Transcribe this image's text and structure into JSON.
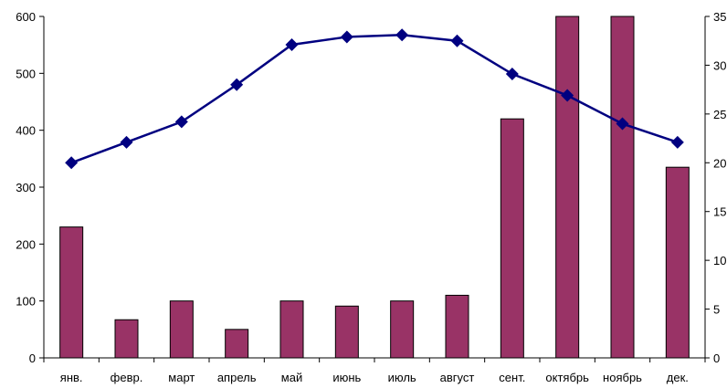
{
  "chart_data": {
    "type": "bar+line",
    "title": "",
    "xlabel": "",
    "ylabel": "",
    "y2label": "",
    "categories": [
      "янв.",
      "февр.",
      "март",
      "апрель",
      "май",
      "июнь",
      "июль",
      "август",
      "сент.",
      "октябрь",
      "ноябрь",
      "дек."
    ],
    "series": [
      {
        "kind": "bar",
        "axis": "left",
        "color": "#993366",
        "values": [
          230,
          67,
          100,
          50,
          100,
          91,
          100,
          110,
          420,
          600,
          600,
          335
        ]
      },
      {
        "kind": "line",
        "axis": "right",
        "color": "#000080",
        "marker": "diamond",
        "values": [
          20.0,
          22.1,
          24.2,
          28.0,
          32.1,
          32.9,
          33.1,
          32.5,
          29.1,
          26.9,
          24.0,
          22.1
        ]
      }
    ],
    "ylim": [
      0,
      600
    ],
    "yticks": [
      0,
      100,
      200,
      300,
      400,
      500,
      600
    ],
    "y2lim": [
      0,
      35
    ],
    "y2ticks": [
      0,
      5,
      10,
      15,
      20,
      25,
      30,
      35
    ],
    "y2tick_labels": [
      "0",
      "5",
      "10",
      "15",
      "20",
      "25",
      "30",
      "35"
    ],
    "grid": false,
    "legend": "none"
  }
}
